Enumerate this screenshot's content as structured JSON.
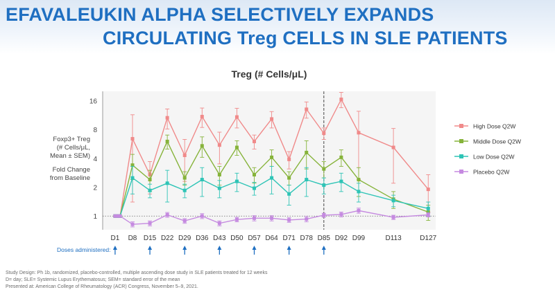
{
  "slide": {
    "title_line1": "EFAVALEUKIN ALPHA SELECTIVELY EXPANDS",
    "title_line2": "CIRCULATING Treg CELLS IN SLE PATIENTS",
    "ylabel_line1": "Foxp3+ Treg",
    "ylabel_line2": "(# Cells/μL,",
    "ylabel_line3": "Mean ± SEM)",
    "ylabel_line4": "Fold Change",
    "ylabel_line5": "from Baseline",
    "doses_label": "Doses administered:",
    "footnote1": "Study Design: Ph 1b, randomized, placebo-controlled, multiple ascending dose study in SLE patients treated for 12 weeks",
    "footnote2": "D= day; SLE= Systemic Lupus Erythematosus; SEM= standard error of the mean",
    "footnote3": "Presented at: American College of Rheumatology (ACR) Congress, November 5–9, 2021."
  },
  "chart_data": {
    "type": "line",
    "title": "Treg (# Cells/μL)",
    "yscale": "log2",
    "ylim": [
      0.72,
      20
    ],
    "yticks": [
      1,
      2,
      4,
      8,
      16
    ],
    "xlim": [
      -4,
      130
    ],
    "xticks": [
      {
        "label": "D1",
        "day": 1
      },
      {
        "label": "D8",
        "day": 8
      },
      {
        "label": "D15",
        "day": 15
      },
      {
        "label": "D22",
        "day": 22
      },
      {
        "label": "D29",
        "day": 29
      },
      {
        "label": "D36",
        "day": 36
      },
      {
        "label": "D43",
        "day": 43
      },
      {
        "label": "D50",
        "day": 50
      },
      {
        "label": "D57",
        "day": 57
      },
      {
        "label": "D64",
        "day": 64
      },
      {
        "label": "D71",
        "day": 71
      },
      {
        "label": "D78",
        "day": 78
      },
      {
        "label": "D85",
        "day": 85
      },
      {
        "label": "D92",
        "day": 92
      },
      {
        "label": "D99",
        "day": 99
      },
      {
        "label": "D113",
        "day": 113
      },
      {
        "label": "D127",
        "day": 127
      }
    ],
    "dose_days": [
      1,
      15,
      29,
      43,
      57,
      71,
      85
    ],
    "reference_day": 85,
    "baseline": 1,
    "series": [
      {
        "name": "High Dose Q2W",
        "color": "#f08a8a",
        "points": [
          [
            1,
            1
          ],
          [
            2,
            1
          ],
          [
            3,
            1
          ],
          [
            8,
            6.4
          ],
          [
            15,
            2.7
          ],
          [
            22,
            10.6
          ],
          [
            29,
            4.3
          ],
          [
            36,
            10.9
          ],
          [
            43,
            5.5
          ],
          [
            50,
            10.8
          ],
          [
            57,
            6
          ],
          [
            64,
            10.3
          ],
          [
            71,
            3.9
          ],
          [
            78,
            13
          ],
          [
            85,
            7.3
          ],
          [
            92,
            16.5
          ],
          [
            99,
            7.4
          ],
          [
            113,
            5.2
          ],
          [
            127,
            1.9
          ]
        ],
        "err": [
          0,
          0,
          0,
          5,
          1,
          2.5,
          2,
          2.5,
          2,
          2.5,
          1,
          2,
          0.8,
          2.5,
          1,
          3,
          5,
          3,
          0.8
        ]
      },
      {
        "name": "Middle Dose Q2W",
        "color": "#86b33a",
        "points": [
          [
            1,
            1
          ],
          [
            2,
            1
          ],
          [
            3,
            1
          ],
          [
            8,
            3.4
          ],
          [
            15,
            2.4
          ],
          [
            22,
            6
          ],
          [
            29,
            2.5
          ],
          [
            36,
            5.4
          ],
          [
            43,
            2.7
          ],
          [
            50,
            5.2
          ],
          [
            57,
            2.7
          ],
          [
            64,
            4.1
          ],
          [
            71,
            2.5
          ],
          [
            78,
            4.6
          ],
          [
            85,
            3.1
          ],
          [
            92,
            4.1
          ],
          [
            99,
            2.4
          ],
          [
            113,
            1.5
          ],
          [
            127,
            1.1
          ]
        ],
        "err": [
          0,
          0,
          0,
          1,
          0.6,
          1,
          0.4,
          1.3,
          0.6,
          0.9,
          0.5,
          0.8,
          0.4,
          1.5,
          0.6,
          0.8,
          0.8,
          0.3,
          0.2
        ]
      },
      {
        "name": "Low Dose Q2W",
        "color": "#2ec4b6",
        "points": [
          [
            1,
            1
          ],
          [
            2,
            1
          ],
          [
            3,
            1
          ],
          [
            8,
            2.5
          ],
          [
            15,
            1.85
          ],
          [
            22,
            2.2
          ],
          [
            29,
            1.85
          ],
          [
            36,
            2.4
          ],
          [
            43,
            1.95
          ],
          [
            50,
            2.3
          ],
          [
            57,
            1.95
          ],
          [
            64,
            2.5
          ],
          [
            71,
            1.7
          ],
          [
            78,
            2.4
          ],
          [
            85,
            2.1
          ],
          [
            92,
            2.3
          ],
          [
            99,
            1.8
          ],
          [
            113,
            1.45
          ],
          [
            127,
            1.2
          ]
        ],
        "err": [
          0,
          0,
          0,
          0.8,
          0.3,
          0.8,
          0.3,
          0.8,
          0.4,
          0.5,
          0.3,
          0.8,
          0.4,
          0.8,
          0.4,
          0.5,
          0.4,
          0.2,
          0.2
        ]
      },
      {
        "name": "Placebo Q2W",
        "color": "#c58ae0",
        "points": [
          [
            1,
            1
          ],
          [
            2,
            1
          ],
          [
            3,
            1
          ],
          [
            8,
            0.82
          ],
          [
            15,
            0.84
          ],
          [
            22,
            1.03
          ],
          [
            29,
            0.89
          ],
          [
            36,
            1
          ],
          [
            43,
            0.84
          ],
          [
            50,
            0.92
          ],
          [
            57,
            0.95
          ],
          [
            64,
            0.95
          ],
          [
            71,
            0.91
          ],
          [
            78,
            0.93
          ],
          [
            85,
            1.02
          ],
          [
            92,
            1.04
          ],
          [
            99,
            1.14
          ],
          [
            113,
            0.97
          ],
          [
            127,
            1.03
          ]
        ],
        "err": [
          0,
          0,
          0,
          0.05,
          0.05,
          0.06,
          0.05,
          0.06,
          0.05,
          0.05,
          0.06,
          0.06,
          0.05,
          0.06,
          0.05,
          0.06,
          0.07,
          0.05,
          0.05
        ]
      }
    ]
  }
}
